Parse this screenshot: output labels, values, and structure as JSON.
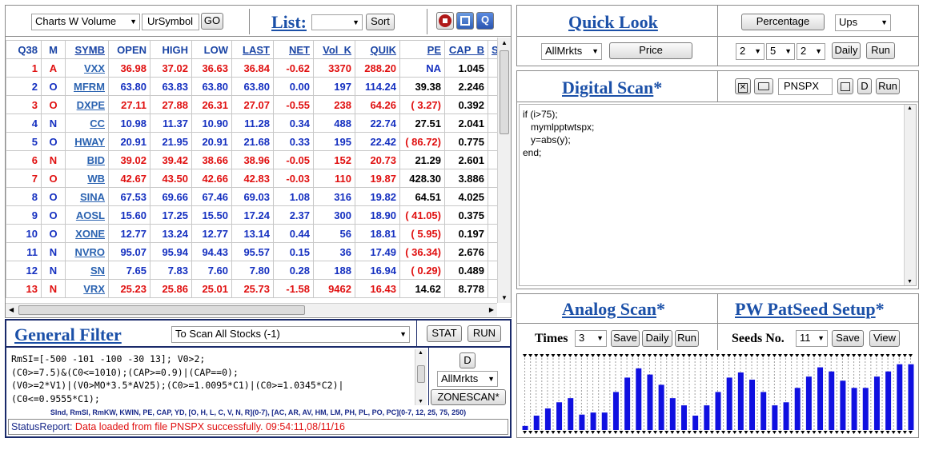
{
  "top_toolbar": {
    "chart_select": "Charts W Volume",
    "symbol_input": "UrSymbol",
    "go_label": "GO",
    "list_title": "List:",
    "list_select": "",
    "sort_label": "Sort",
    "q_label": "Q"
  },
  "table": {
    "headers": [
      "Q38",
      "M",
      "SYMB",
      "OPEN",
      "HIGH",
      "LOW",
      "LAST",
      "NET",
      "Vol_K",
      "QUIK",
      "PE",
      "CAP_B",
      "S"
    ],
    "rows": [
      {
        "q": "1",
        "m": "A",
        "symb": "VXX",
        "open": "36.98",
        "high": "37.02",
        "low": "36.63",
        "last": "36.84",
        "net": "-0.62",
        "vol": "3370",
        "quik": "288.20",
        "pe": "NA",
        "cap": "1.045",
        "color": "red"
      },
      {
        "q": "2",
        "m": "O",
        "symb": "MFRM",
        "open": "63.80",
        "high": "63.83",
        "low": "63.80",
        "last": "63.80",
        "net": "0.00",
        "vol": "197",
        "quik": "114.24",
        "pe": "39.38",
        "cap": "2.246",
        "color": "blue"
      },
      {
        "q": "3",
        "m": "O",
        "symb": "DXPE",
        "open": "27.11",
        "high": "27.88",
        "low": "26.31",
        "last": "27.07",
        "net": "-0.55",
        "vol": "238",
        "quik": "64.26",
        "pe": "( 3.27)",
        "cap": "0.392",
        "color": "red"
      },
      {
        "q": "4",
        "m": "N",
        "symb": "CC",
        "open": "10.98",
        "high": "11.37",
        "low": "10.90",
        "last": "11.28",
        "net": "0.34",
        "vol": "488",
        "quik": "22.74",
        "pe": "27.51",
        "cap": "2.041",
        "color": "blue"
      },
      {
        "q": "5",
        "m": "O",
        "symb": "HWAY",
        "open": "20.91",
        "high": "21.95",
        "low": "20.91",
        "last": "21.68",
        "net": "0.33",
        "vol": "195",
        "quik": "22.42",
        "pe": "( 86.72)",
        "cap": "0.775",
        "color": "blue"
      },
      {
        "q": "6",
        "m": "N",
        "symb": "BID",
        "open": "39.02",
        "high": "39.42",
        "low": "38.66",
        "last": "38.96",
        "net": "-0.05",
        "vol": "152",
        "quik": "20.73",
        "pe": "21.29",
        "cap": "2.601",
        "color": "red"
      },
      {
        "q": "7",
        "m": "O",
        "symb": "WB",
        "open": "42.67",
        "high": "43.50",
        "low": "42.66",
        "last": "42.83",
        "net": "-0.03",
        "vol": "110",
        "quik": "19.87",
        "pe": "428.30",
        "cap": "3.886",
        "color": "red"
      },
      {
        "q": "8",
        "m": "O",
        "symb": "SINA",
        "open": "67.53",
        "high": "69.66",
        "low": "67.46",
        "last": "69.03",
        "net": "1.08",
        "vol": "316",
        "quik": "19.82",
        "pe": "64.51",
        "cap": "4.025",
        "color": "blue"
      },
      {
        "q": "9",
        "m": "O",
        "symb": "AOSL",
        "open": "15.60",
        "high": "17.25",
        "low": "15.50",
        "last": "17.24",
        "net": "2.37",
        "vol": "300",
        "quik": "18.90",
        "pe": "( 41.05)",
        "cap": "0.375",
        "color": "blue"
      },
      {
        "q": "10",
        "m": "O",
        "symb": "XONE",
        "open": "12.77",
        "high": "13.24",
        "low": "12.77",
        "last": "13.14",
        "net": "0.44",
        "vol": "56",
        "quik": "18.81",
        "pe": "( 5.95)",
        "cap": "0.197",
        "color": "blue"
      },
      {
        "q": "11",
        "m": "N",
        "symb": "NVRO",
        "open": "95.07",
        "high": "95.94",
        "low": "94.43",
        "last": "95.57",
        "net": "0.15",
        "vol": "36",
        "quik": "17.49",
        "pe": "( 36.34)",
        "cap": "2.676",
        "color": "blue"
      },
      {
        "q": "12",
        "m": "N",
        "symb": "SN",
        "open": "7.65",
        "high": "7.83",
        "low": "7.60",
        "last": "7.80",
        "net": "0.28",
        "vol": "188",
        "quik": "16.94",
        "pe": "( 0.29)",
        "cap": "0.489",
        "color": "blue"
      },
      {
        "q": "13",
        "m": "N",
        "symb": "VRX",
        "open": "25.23",
        "high": "25.86",
        "low": "25.01",
        "last": "25.73",
        "net": "-1.58",
        "vol": "9462",
        "quik": "16.43",
        "pe": "14.62",
        "cap": "8.778",
        "color": "red"
      }
    ]
  },
  "general_filter": {
    "title": "General Filter",
    "scan_select": "To Scan All Stocks (-1)",
    "stat_label": "STAT",
    "run_label": "RUN",
    "code_lines": [
      "RmSI=[-500 -101 -100 -30 13]; V0>2;",
      "(C0>=7.5)&(C0<=1010);(CAP>=0.9)|(CAP==0);",
      "(V0>=2*V1)|(V0>MO*3.5*AV25);(C0>=1.0095*C1)|(C0>=1.0345*C2)|",
      "(C0<=0.9555*C1);"
    ],
    "d_label": "D",
    "market_select": "AllMrkts",
    "zonescan_label": "ZONESCAN*",
    "hint": "SInd, RmSI, RmKW, KWIN, PE, CAP, YD, [O, H, L, C, V, N, R](0-7), [AC, AR, AV, HM, LM, PH, PL, PO, PC](0-7, 12, 25, 75, 250)",
    "status_label": "StatusReport:",
    "status_text": "Data loaded from file PNSPX successfully.  09:54:11,08/11/16"
  },
  "quick_look": {
    "title": "Quick Look",
    "market_select": "AllMrkts",
    "price_label": "Price",
    "percentage_label": "Percentage",
    "ups_select": "Ups",
    "sel1": "2",
    "sel2": "5",
    "sel3": "2",
    "daily_label": "Daily",
    "run_label": "Run"
  },
  "digital_scan": {
    "title": "Digital Scan",
    "star": "*",
    "file_input": "PNSPX",
    "d_label": "D",
    "run_label": "Run",
    "code_lines": [
      "if (i>75);",
      "   mymlpptwtspx;",
      "   y=abs(y);",
      "end;"
    ]
  },
  "analog_scan": {
    "title": "Analog Scan",
    "star": "*",
    "times_label": "Times",
    "times_select": "3",
    "save_label": "Save",
    "daily_label": "Daily",
    "run_label": "Run"
  },
  "pw_patseed": {
    "title": "PW PatSeed Setup",
    "star": "*",
    "seeds_label": "Seeds No.",
    "seeds_select": "11",
    "save_label": "Save",
    "view_label": "View"
  },
  "pattern_chart": {
    "bar_color": "#1010e0",
    "values": [
      4,
      10,
      14,
      17,
      21,
      24,
      27,
      29,
      31,
      17,
      15,
      14,
      17,
      13,
      17,
      26,
      37,
      44,
      51,
      57,
      60,
      58,
      54,
      49,
      44,
      37,
      31,
      27,
      24,
      17,
      14,
      17,
      24,
      31,
      37,
      44,
      51,
      58,
      56,
      51,
      49,
      44,
      37,
      31,
      24,
      21,
      27,
      34,
      41,
      47,
      52,
      57,
      61,
      59,
      57,
      54,
      48,
      44,
      41,
      37,
      41,
      47,
      52,
      54,
      57,
      61,
      64,
      61,
      64
    ]
  }
}
